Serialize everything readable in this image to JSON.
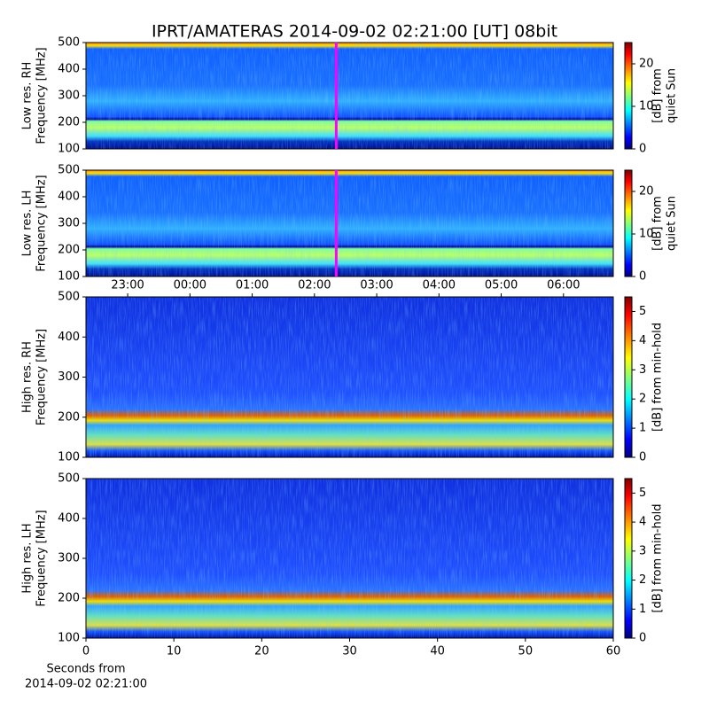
{
  "title": "IPRT/AMATERAS 2014-09-02 02:21:00 [UT]   08bit",
  "chart_data": [
    {
      "type": "spectrogram",
      "ylabel": [
        "Low res. RH",
        "Frequency [MHz]"
      ],
      "ylim": [
        100,
        500
      ],
      "yticks": [
        100,
        200,
        300,
        400,
        500
      ],
      "colormap": "jet",
      "colorbar": {
        "label": [
          "[dB] from",
          "quiet Sun"
        ],
        "lim": [
          0,
          25
        ],
        "ticks": [
          0,
          10,
          20
        ]
      },
      "x2lim": [
        -1.67,
        6.8
      ],
      "vline": {
        "value": 2.35,
        "color": "#ff00ff"
      }
    },
    {
      "type": "spectrogram",
      "ylabel": [
        "Low res. LH",
        "Frequency [MHz]"
      ],
      "ylim": [
        100,
        500
      ],
      "yticks": [
        100,
        200,
        300,
        400,
        500
      ],
      "colormap": "jet",
      "colorbar": {
        "label": [
          "[dB] from",
          "quiet Sun"
        ],
        "lim": [
          0,
          25
        ],
        "ticks": [
          0,
          10,
          20
        ]
      },
      "x2lim": [
        -1.67,
        6.8
      ],
      "vline": {
        "value": 2.35,
        "color": "#ff00ff"
      }
    },
    {
      "type": "spectrogram",
      "ylabel": [
        "High res. RH",
        "Frequency [MHz]"
      ],
      "ylim": [
        100,
        500
      ],
      "yticks": [
        100,
        200,
        300,
        400,
        500
      ],
      "colormap": "jet",
      "colorbar": {
        "label": [
          "[dB] from min-hold"
        ],
        "lim": [
          0,
          5.5
        ],
        "ticks": [
          0,
          1,
          2,
          3,
          4,
          5
        ]
      },
      "x2lim": [
        -1.67,
        6.8
      ],
      "x2ticks": [
        {
          "value": -1,
          "label": "23:00"
        },
        {
          "value": 0,
          "label": "00:00"
        },
        {
          "value": 1,
          "label": "01:00"
        },
        {
          "value": 2,
          "label": "02:00"
        },
        {
          "value": 3,
          "label": "03:00"
        },
        {
          "value": 4,
          "label": "04:00"
        },
        {
          "value": 5,
          "label": "05:00"
        },
        {
          "value": 6,
          "label": "06:00"
        }
      ]
    },
    {
      "type": "spectrogram",
      "ylabel": [
        "High res. LH",
        "Frequency [MHz]"
      ],
      "ylim": [
        100,
        500
      ],
      "yticks": [
        100,
        200,
        300,
        400,
        500
      ],
      "colormap": "jet",
      "colorbar": {
        "label": [
          "[dB] from min-hold"
        ],
        "lim": [
          0,
          5.5
        ],
        "ticks": [
          0,
          1,
          2,
          3,
          4,
          5
        ]
      },
      "xlim": [
        0,
        60
      ],
      "xticks": [
        0,
        10,
        20,
        30,
        40,
        50,
        60
      ],
      "xlabel": [
        "Seconds from",
        "2014-09-02 02:21:00"
      ]
    }
  ]
}
